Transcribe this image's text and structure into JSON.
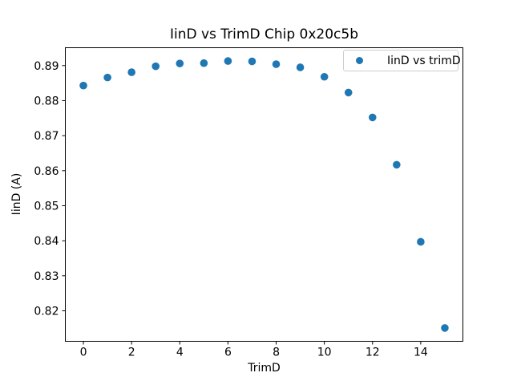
{
  "chart_data": {
    "type": "scatter",
    "title": "IinD vs TrimD Chip 0x20c5b",
    "xlabel": "TrimD",
    "ylabel": "IinD (A)",
    "legend": [
      {
        "label": "IinD vs trimD",
        "marker_color": "#1f77b4"
      }
    ],
    "legend_position": "upper right",
    "x": [
      0,
      1,
      2,
      3,
      4,
      5,
      6,
      7,
      8,
      9,
      10,
      11,
      12,
      13,
      14,
      15
    ],
    "y": [
      0.8843,
      0.8866,
      0.8881,
      0.8898,
      0.8906,
      0.8907,
      0.8913,
      0.8912,
      0.8904,
      0.8895,
      0.8868,
      0.8823,
      0.8752,
      0.8617,
      0.8397,
      0.8151
    ],
    "xticks": [
      0,
      2,
      4,
      6,
      8,
      10,
      12,
      14
    ],
    "yticks": [
      0.82,
      0.83,
      0.84,
      0.85,
      0.86,
      0.87,
      0.88,
      0.89
    ],
    "xlim": [
      -0.75,
      15.75
    ],
    "ylim": [
      0.8113,
      0.8951
    ],
    "grid": false,
    "marker": "o",
    "marker_color": "#1f77b4",
    "axes_color": "#000000",
    "background": "#ffffff"
  }
}
